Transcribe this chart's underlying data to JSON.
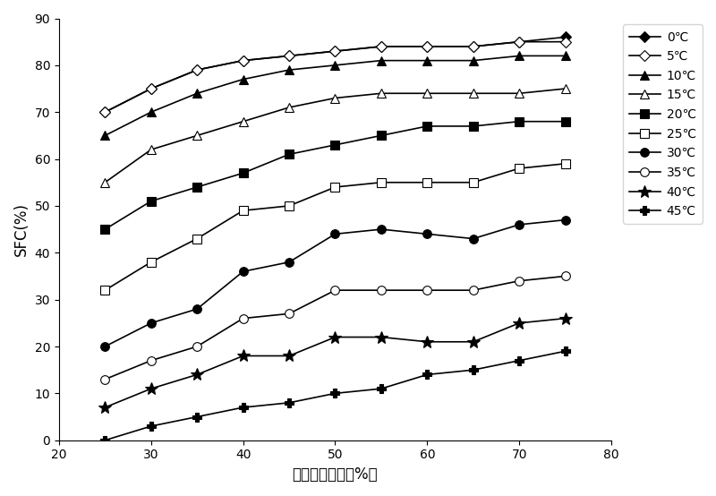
{
  "x": [
    25,
    30,
    35,
    40,
    45,
    50,
    55,
    60,
    65,
    70,
    75
  ],
  "series": [
    {
      "label": "0℃",
      "values": [
        70,
        75,
        79,
        81,
        82,
        83,
        84,
        84,
        84,
        85,
        86
      ],
      "marker": "D",
      "markersize": 6,
      "markerfacecolor": "black",
      "color": "black"
    },
    {
      "label": "5℃",
      "values": [
        70,
        75,
        79,
        81,
        82,
        83,
        84,
        84,
        84,
        85,
        85
      ],
      "marker": "D",
      "markersize": 6,
      "markerfacecolor": "white",
      "color": "black"
    },
    {
      "label": "10℃",
      "values": [
        65,
        70,
        74,
        77,
        79,
        80,
        81,
        81,
        81,
        82,
        82
      ],
      "marker": "^",
      "markersize": 7,
      "markerfacecolor": "black",
      "color": "black"
    },
    {
      "label": "15℃",
      "values": [
        55,
        62,
        65,
        68,
        71,
        73,
        74,
        74,
        74,
        74,
        75
      ],
      "marker": "^",
      "markersize": 7,
      "markerfacecolor": "white",
      "color": "black"
    },
    {
      "label": "20℃",
      "values": [
        45,
        51,
        54,
        57,
        61,
        63,
        65,
        67,
        67,
        68,
        68
      ],
      "marker": "s",
      "markersize": 7,
      "markerfacecolor": "black",
      "color": "black"
    },
    {
      "label": "25℃",
      "values": [
        32,
        38,
        43,
        49,
        50,
        54,
        55,
        55,
        55,
        58,
        59
      ],
      "marker": "s",
      "markersize": 7,
      "markerfacecolor": "white",
      "color": "black"
    },
    {
      "label": "30℃",
      "values": [
        20,
        25,
        28,
        36,
        38,
        44,
        45,
        44,
        43,
        46,
        47
      ],
      "marker": "o",
      "markersize": 7,
      "markerfacecolor": "black",
      "color": "black"
    },
    {
      "label": "35℃",
      "values": [
        13,
        17,
        20,
        26,
        27,
        32,
        32,
        32,
        32,
        34,
        35
      ],
      "marker": "o",
      "markersize": 7,
      "markerfacecolor": "white",
      "color": "black"
    },
    {
      "label": "40℃",
      "values": [
        7,
        11,
        14,
        18,
        18,
        22,
        22,
        21,
        21,
        25,
        26
      ],
      "marker": "*",
      "markersize": 10,
      "markerfacecolor": "black",
      "color": "black"
    },
    {
      "label": "45℃",
      "values": [
        0,
        3,
        5,
        7,
        8,
        10,
        11,
        14,
        15,
        17,
        19
      ],
      "marker": "P",
      "markersize": 7,
      "markerfacecolor": "black",
      "color": "black"
    }
  ],
  "xlabel": "棕榄硬脂含量（%）",
  "ylabel": "SFC(%)",
  "xlim": [
    20,
    80
  ],
  "ylim": [
    0,
    90
  ],
  "xticks": [
    20,
    30,
    40,
    50,
    60,
    70,
    80
  ],
  "yticks": [
    0,
    10,
    20,
    30,
    40,
    50,
    60,
    70,
    80,
    90
  ],
  "axis_fontsize": 12,
  "legend_fontsize": 10
}
